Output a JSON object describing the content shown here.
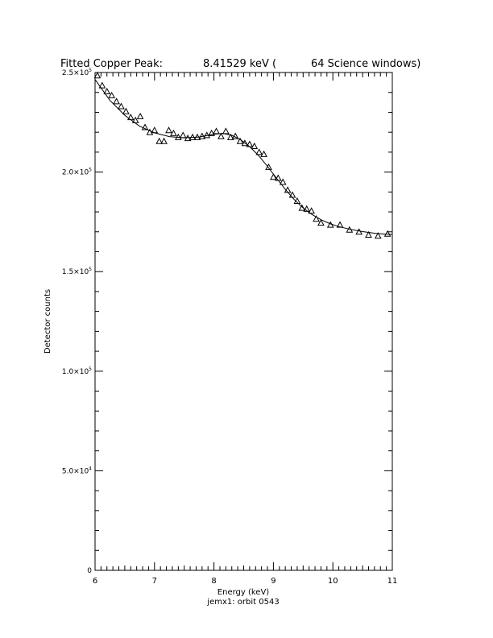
{
  "header": {
    "title_left": "Fitted Copper Peak:",
    "title_energy": "8.41529 keV (",
    "title_windows": "64 Science windows)"
  },
  "footer": {
    "caption": "jemx1: orbit 0543"
  },
  "chart_data": {
    "type": "scatter",
    "xlabel": "Energy (keV)",
    "ylabel": "Detector counts",
    "xlim": [
      6,
      11
    ],
    "ylim": [
      0,
      250000
    ],
    "grid": false,
    "x_ticks": [
      6,
      7,
      8,
      9,
      10,
      11
    ],
    "x_tick_labels": [
      "6",
      "7",
      "8",
      "9",
      "10",
      "11"
    ],
    "y_ticks": [
      50000,
      100000,
      150000,
      200000,
      250000
    ],
    "y_tick_labels": [
      {
        "mantissa": "5.0×10",
        "exp": "4"
      },
      {
        "mantissa": "1.0×10",
        "exp": "5"
      },
      {
        "mantissa": "1.5×10",
        "exp": "5"
      },
      {
        "mantissa": "2.0×10",
        "exp": "5"
      },
      {
        "mantissa": "2.5×10",
        "exp": "5"
      }
    ],
    "y_zero_label": "0",
    "series": [
      {
        "marker": "triangle",
        "x": [
          6.04,
          6.12,
          6.2,
          6.28,
          6.36,
          6.44,
          6.52,
          6.6,
          6.68,
          6.76,
          6.84,
          6.92,
          7.0,
          7.08,
          7.16,
          7.24,
          7.32,
          7.4,
          7.48,
          7.56,
          7.64,
          7.72,
          7.8,
          7.88,
          7.96,
          8.04,
          8.12,
          8.2,
          8.28,
          8.36,
          8.44,
          8.52,
          8.6,
          8.68,
          8.76,
          8.84,
          8.92,
          9.0,
          9.08,
          9.16,
          9.24,
          9.32,
          9.4,
          9.48,
          9.56,
          9.64,
          9.72,
          9.8,
          9.96,
          10.12,
          10.28,
          10.44,
          10.6,
          10.76,
          10.92
        ],
        "y": [
          248500,
          243500,
          240500,
          238500,
          235500,
          233000,
          230500,
          227500,
          226000,
          228000,
          222500,
          220000,
          221000,
          215500,
          215500,
          221000,
          219500,
          217500,
          218500,
          217000,
          217500,
          217500,
          218000,
          218500,
          219500,
          220500,
          218000,
          220500,
          217500,
          218000,
          215500,
          214500,
          214000,
          213000,
          210000,
          209000,
          202500,
          197500,
          197000,
          195000,
          191000,
          188500,
          185500,
          182000,
          181500,
          180500,
          176500,
          174500,
          173500,
          173500,
          171000,
          170000,
          168500,
          168000,
          169000
        ]
      },
      {
        "style": "line",
        "x": [
          6.0,
          6.25,
          6.5,
          6.75,
          7.0,
          7.25,
          7.5,
          7.75,
          8.0,
          8.15,
          8.3,
          8.45,
          8.6,
          8.75,
          8.9,
          9.05,
          9.2,
          9.35,
          9.5,
          9.65,
          9.8,
          9.95,
          10.1,
          10.3,
          10.5,
          10.7,
          10.9,
          11.0
        ],
        "y": [
          246500,
          236000,
          228500,
          223000,
          219700,
          217800,
          217200,
          217600,
          219000,
          219400,
          218500,
          216200,
          212800,
          208300,
          202900,
          197000,
          191300,
          186200,
          182000,
          178700,
          176100,
          174100,
          172600,
          171200,
          170100,
          169300,
          168800,
          168700
        ]
      }
    ]
  }
}
